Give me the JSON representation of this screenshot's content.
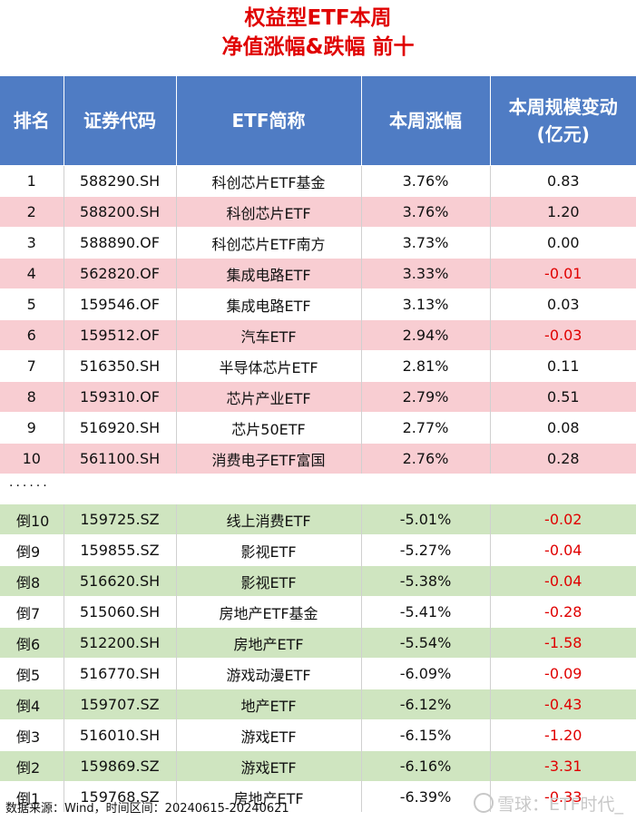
{
  "title": {
    "line1": "权益型ETF本周",
    "line2": "净值涨幅&跌幅 前十"
  },
  "headers": {
    "rank": "排名",
    "code": "证券代码",
    "name": "ETF简称",
    "change": "本周涨幅",
    "scale_line1": "本周规模变动",
    "scale_line2": "(亿元)"
  },
  "top_rows": [
    {
      "rank": "1",
      "code": "588290.SH",
      "name": "科创芯片ETF基金",
      "change": "3.76%",
      "scale": "0.83"
    },
    {
      "rank": "2",
      "code": "588200.SH",
      "name": "科创芯片ETF",
      "change": "3.76%",
      "scale": "1.20"
    },
    {
      "rank": "3",
      "code": "588890.OF",
      "name": "科创芯片ETF南方",
      "change": "3.73%",
      "scale": "0.00"
    },
    {
      "rank": "4",
      "code": "562820.OF",
      "name": "集成电路ETF",
      "change": "3.33%",
      "scale": "-0.01"
    },
    {
      "rank": "5",
      "code": "159546.OF",
      "name": "集成电路ETF",
      "change": "3.13%",
      "scale": "0.03"
    },
    {
      "rank": "6",
      "code": "159512.OF",
      "name": "汽车ETF",
      "change": "2.94%",
      "scale": "-0.03"
    },
    {
      "rank": "7",
      "code": "516350.SH",
      "name": "半导体芯片ETF",
      "change": "2.81%",
      "scale": "0.11"
    },
    {
      "rank": "8",
      "code": "159310.OF",
      "name": "芯片产业ETF",
      "change": "2.79%",
      "scale": "0.51"
    },
    {
      "rank": "9",
      "code": "516920.SH",
      "name": "芯片50ETF",
      "change": "2.77%",
      "scale": "0.08"
    },
    {
      "rank": "10",
      "code": "561100.SH",
      "name": "消费电子ETF富国",
      "change": "2.76%",
      "scale": "0.28"
    }
  ],
  "ellipsis": "......",
  "bottom_rows": [
    {
      "rank": "倒10",
      "code": "159725.SZ",
      "name": "线上消费ETF",
      "change": "-5.01%",
      "scale": "-0.02"
    },
    {
      "rank": "倒9",
      "code": "159855.SZ",
      "name": "影视ETF",
      "change": "-5.27%",
      "scale": "-0.04"
    },
    {
      "rank": "倒8",
      "code": "516620.SH",
      "name": "影视ETF",
      "change": "-5.38%",
      "scale": "-0.04"
    },
    {
      "rank": "倒7",
      "code": "515060.SH",
      "name": "房地产ETF基金",
      "change": "-5.41%",
      "scale": "-0.28"
    },
    {
      "rank": "倒6",
      "code": "512200.SH",
      "name": "房地产ETF",
      "change": "-5.54%",
      "scale": "-1.58"
    },
    {
      "rank": "倒5",
      "code": "516770.SH",
      "name": "游戏动漫ETF",
      "change": "-6.09%",
      "scale": "-0.09"
    },
    {
      "rank": "倒4",
      "code": "159707.SZ",
      "name": "地产ETF",
      "change": "-6.12%",
      "scale": "-0.43"
    },
    {
      "rank": "倒3",
      "code": "516010.SH",
      "name": "游戏ETF",
      "change": "-6.15%",
      "scale": "-1.20"
    },
    {
      "rank": "倒2",
      "code": "159869.SZ",
      "name": "游戏ETF",
      "change": "-6.16%",
      "scale": "-3.31"
    },
    {
      "rank": "倒1",
      "code": "159768.SZ",
      "name": "房地产ETF",
      "change": "-6.39%",
      "scale": "-0.33"
    }
  ],
  "footer": "数据来源：Wind，时间区间：20240615-20240621",
  "watermark": "雪球：ETF时代_",
  "colors": {
    "title": "#e00000",
    "header_bg": "#4f7cc4",
    "pink_row": "#f8cdd2",
    "green_row": "#cfe5c0",
    "negative": "#e00000"
  }
}
